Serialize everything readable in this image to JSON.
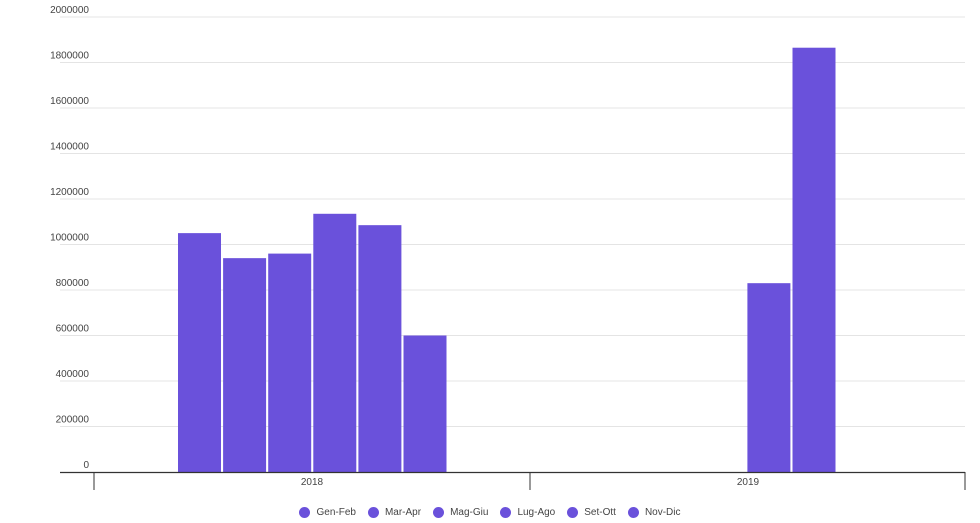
{
  "chart_data": {
    "type": "bar",
    "categories": [
      "2018",
      "2019"
    ],
    "series": [
      {
        "name": "Gen-Feb",
        "values": [
          1050000,
          null
        ]
      },
      {
        "name": "Mar-Apr",
        "values": [
          940000,
          null
        ]
      },
      {
        "name": "Mag-Giu",
        "values": [
          960000,
          null
        ]
      },
      {
        "name": "Lug-Ago",
        "values": [
          1135000,
          null
        ]
      },
      {
        "name": "Set-Ott",
        "values": [
          1085000,
          830000
        ]
      },
      {
        "name": "Nov-Dic",
        "values": [
          600000,
          1865000
        ]
      }
    ],
    "ylim": [
      0,
      2000000
    ],
    "yticks": [
      "0",
      "200000",
      "400000",
      "600000",
      "800000",
      "1000000",
      "1200000",
      "1400000",
      "1600000",
      "1800000",
      "2000000"
    ],
    "grid": true,
    "legend_position": "bottom",
    "bar_color": "#6a51db"
  }
}
